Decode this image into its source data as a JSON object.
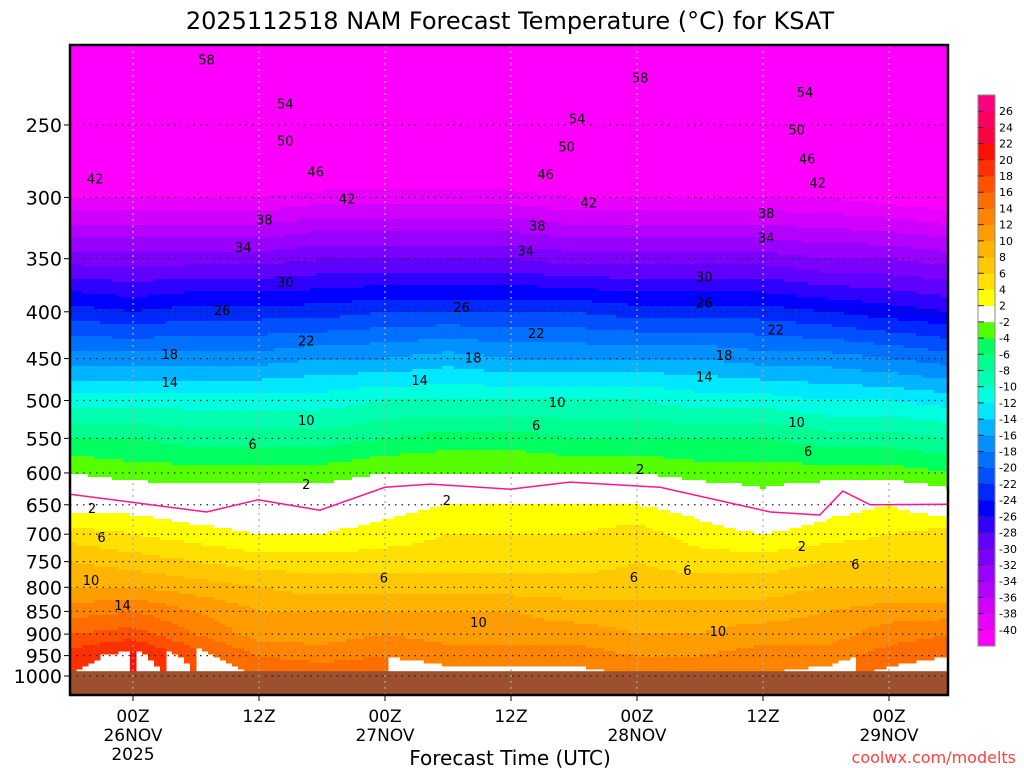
{
  "chart_data": {
    "type": "heatmap",
    "title": "2025112518 NAM Forecast Temperature (°C) for KSAT",
    "xlabel": "Forecast Time (UTC)",
    "ylabel": "",
    "credit": "coolwx.com/modelts",
    "x_units": "hours from 00Z 26NOV 2025",
    "xlim": [
      -6,
      77.6
    ],
    "ylim_pressure_hPa": [
      1049,
      205
    ],
    "y_scale": "log",
    "y_ticks": [
      "250",
      "300",
      "350",
      "400",
      "450",
      "500",
      "550",
      "600",
      "650",
      "700",
      "750",
      "800",
      "850",
      "900",
      "950",
      "1000"
    ],
    "y_tick_values": [
      250,
      300,
      350,
      400,
      450,
      500,
      550,
      600,
      650,
      700,
      750,
      800,
      850,
      900,
      950,
      1000
    ],
    "x_ticks": [
      {
        "hour": 0,
        "line1": "00Z",
        "line2": "26NOV",
        "line3": "2025"
      },
      {
        "hour": 12,
        "line1": "12Z",
        "line2": "",
        "line3": ""
      },
      {
        "hour": 24,
        "line1": "00Z",
        "line2": "27NOV",
        "line3": ""
      },
      {
        "hour": 36,
        "line1": "12Z",
        "line2": "",
        "line3": ""
      },
      {
        "hour": 48,
        "line1": "00Z",
        "line2": "28NOV",
        "line3": ""
      },
      {
        "hour": 60,
        "line1": "12Z",
        "line2": "",
        "line3": ""
      },
      {
        "hour": 72,
        "line1": "00Z",
        "line2": "29NOV",
        "line3": ""
      }
    ],
    "grid": true,
    "ground_pressure_hPa": 988,
    "ground_color": "#9c5030",
    "hours": [
      -6,
      0,
      6,
      12,
      18,
      24,
      30,
      36,
      42,
      48,
      54,
      60,
      66,
      72,
      78
    ],
    "pressure_levels": [
      1000,
      950,
      900,
      850,
      800,
      750,
      700,
      650,
      600,
      550,
      500,
      450,
      400,
      350,
      300,
      250,
      200
    ],
    "temperature_C": [
      [
        20,
        22,
        18,
        16,
        16,
        16,
        15,
        15,
        15,
        14,
        14,
        14,
        15,
        17,
        18
      ],
      [
        19,
        21,
        17,
        14,
        13,
        14,
        13,
        13,
        13,
        12,
        12,
        13,
        13,
        15,
        16
      ],
      [
        16,
        17,
        14,
        11,
        11,
        12,
        11,
        11,
        11,
        10,
        10,
        11,
        11,
        13,
        14
      ],
      [
        13,
        14,
        12,
        10,
        10,
        10,
        10,
        10,
        9,
        9,
        9,
        9,
        10,
        11,
        11
      ],
      [
        10,
        10,
        9,
        8,
        7,
        7,
        7,
        7,
        7,
        7,
        7,
        7,
        8,
        8,
        8
      ],
      [
        8,
        7,
        6,
        5,
        5,
        5,
        5,
        5,
        5,
        6,
        5,
        5,
        6,
        6,
        6
      ],
      [
        5,
        4,
        3,
        2,
        2,
        3,
        4,
        4,
        4,
        5,
        3,
        2,
        3,
        4,
        5
      ],
      [
        1,
        1,
        0,
        0,
        0,
        1,
        2,
        2,
        2,
        2,
        1,
        -1,
        1,
        2,
        0
      ],
      [
        -2,
        -3,
        -3,
        -3,
        -3,
        -2,
        -2,
        -2,
        -2,
        -2,
        -3,
        -3,
        -3,
        -3,
        -4
      ],
      [
        -6,
        -6,
        -7,
        -7,
        -7,
        -6,
        -5,
        -5,
        -6,
        -6,
        -6,
        -6,
        -7,
        -7,
        -8
      ],
      [
        -11,
        -11,
        -11,
        -11,
        -11,
        -10,
        -10,
        -10,
        -10,
        -10,
        -11,
        -11,
        -12,
        -12,
        -13
      ],
      [
        -17,
        -17,
        -17,
        -17,
        -16,
        -16,
        -15,
        -16,
        -16,
        -16,
        -16,
        -17,
        -17,
        -18,
        -19
      ],
      [
        -23,
        -24,
        -23,
        -23,
        -23,
        -22,
        -22,
        -22,
        -22,
        -23,
        -23,
        -23,
        -24,
        -25,
        -26
      ],
      [
        -31,
        -31,
        -31,
        -31,
        -30,
        -30,
        -30,
        -30,
        -31,
        -31,
        -31,
        -31,
        -32,
        -32,
        -33
      ],
      [
        -40,
        -40,
        -40,
        -40,
        -39,
        -39,
        -39,
        -39,
        -40,
        -40,
        -40,
        -40,
        -40,
        -41,
        -42
      ],
      [
        -50,
        -50,
        -50,
        -50,
        -49,
        -49,
        -49,
        -49,
        -50,
        -50,
        -50,
        -50,
        -50,
        -51,
        -51
      ],
      [
        -58,
        -58,
        -58,
        -58,
        -58,
        -58,
        -57,
        -58,
        -58,
        -58,
        -58,
        -58,
        -58,
        -58,
        -58
      ]
    ],
    "color_boundaries": [
      -40,
      -38,
      -36,
      -34,
      -32,
      -30,
      -28,
      -26,
      -24,
      -22,
      -20,
      -18,
      -16,
      -14,
      -12,
      -10,
      -8,
      -6,
      -4,
      -2,
      2,
      4,
      6,
      8,
      10,
      12,
      14,
      16,
      18,
      20,
      22,
      24,
      26
    ],
    "colors": [
      "#ff00ff",
      "#e800ff",
      "#d000ff",
      "#b400ff",
      "#9800ff",
      "#7c00ff",
      "#6000ff",
      "#3000ff",
      "#0000ff",
      "#0028ff",
      "#0050ff",
      "#0070ff",
      "#0090ff",
      "#00b4ff",
      "#00e8ff",
      "#00ffe0",
      "#00ffb0",
      "#00ff90",
      "#00ff60",
      "#55ff00",
      "#ffffff",
      "#ffff00",
      "#ffe000",
      "#ffc800",
      "#ffb400",
      "#ff9c00",
      "#ff8400",
      "#ff6c00",
      "#ff5000",
      "#ff3000",
      "#ff1000",
      "#ff0040",
      "#ff0060",
      "#ff0080"
    ],
    "colorbar_labels": [
      "26",
      "24",
      "22",
      "20",
      "18",
      "16",
      "14",
      "12",
      "10",
      "8",
      "6",
      "4",
      "2",
      "-2",
      "-4",
      "-6",
      "-8",
      "-10",
      "-12",
      "-14",
      "-16",
      "-18",
      "-20",
      "-22",
      "-24",
      "-26",
      "-28",
      "-30",
      "-32",
      "-34",
      "-36",
      "-38",
      "-40"
    ],
    "freezing_line_color": "#ff1493",
    "freezing_line": [
      [
        -6,
        633
      ],
      [
        7,
        662
      ],
      [
        11.9,
        642
      ],
      [
        17.8,
        659
      ],
      [
        24,
        622
      ],
      [
        28.3,
        617
      ],
      [
        35.9,
        625
      ],
      [
        41.6,
        614
      ],
      [
        50.2,
        622
      ],
      [
        60.7,
        662
      ],
      [
        65.4,
        667
      ],
      [
        67.6,
        628
      ],
      [
        70.2,
        650
      ],
      [
        77.6,
        649
      ]
    ],
    "contour_labels": [
      {
        "text": "58",
        "hour": 7,
        "p": 212
      },
      {
        "text": "58",
        "hour": 48.3,
        "p": 222
      },
      {
        "text": "54",
        "hour": 14.5,
        "p": 237
      },
      {
        "text": "54",
        "hour": 42.3,
        "p": 246
      },
      {
        "text": "54",
        "hour": 64,
        "p": 230
      },
      {
        "text": "50",
        "hour": 14.5,
        "p": 260
      },
      {
        "text": "50",
        "hour": 41.3,
        "p": 264
      },
      {
        "text": "50",
        "hour": 63.2,
        "p": 253
      },
      {
        "text": "46",
        "hour": 17.4,
        "p": 281
      },
      {
        "text": "46",
        "hour": 39.3,
        "p": 283
      },
      {
        "text": "46",
        "hour": 64.2,
        "p": 272
      },
      {
        "text": "42",
        "hour": -3.6,
        "p": 286
      },
      {
        "text": "42",
        "hour": 20.4,
        "p": 301
      },
      {
        "text": "42",
        "hour": 43.4,
        "p": 304
      },
      {
        "text": "42",
        "hour": 65.2,
        "p": 289
      },
      {
        "text": "38",
        "hour": 12.5,
        "p": 317
      },
      {
        "text": "38",
        "hour": 38.5,
        "p": 322
      },
      {
        "text": "38",
        "hour": 60.3,
        "p": 312
      },
      {
        "text": "34",
        "hour": 10.5,
        "p": 340
      },
      {
        "text": "34",
        "hour": 37.4,
        "p": 343
      },
      {
        "text": "34",
        "hour": 60.3,
        "p": 332
      },
      {
        "text": "30",
        "hour": 14.5,
        "p": 371
      },
      {
        "text": "30",
        "hour": 54.4,
        "p": 366
      },
      {
        "text": "26",
        "hour": 8.5,
        "p": 398
      },
      {
        "text": "26",
        "hour": 31.3,
        "p": 395
      },
      {
        "text": "26",
        "hour": 54.4,
        "p": 391
      },
      {
        "text": "22",
        "hour": 16.5,
        "p": 430
      },
      {
        "text": "22",
        "hour": 38.4,
        "p": 422
      },
      {
        "text": "22",
        "hour": 61.2,
        "p": 418
      },
      {
        "text": "18",
        "hour": 3.5,
        "p": 445
      },
      {
        "text": "18",
        "hour": 32.4,
        "p": 449
      },
      {
        "text": "18",
        "hour": 56.3,
        "p": 446
      },
      {
        "text": "14",
        "hour": 3.5,
        "p": 477
      },
      {
        "text": "14",
        "hour": 27.3,
        "p": 475
      },
      {
        "text": "14",
        "hour": 54.4,
        "p": 471
      },
      {
        "text": "10",
        "hour": 16.5,
        "p": 525
      },
      {
        "text": "10",
        "hour": 40.4,
        "p": 502
      },
      {
        "text": "10",
        "hour": 63.2,
        "p": 528
      },
      {
        "text": "6",
        "hour": 11.4,
        "p": 558
      },
      {
        "text": "6",
        "hour": 38.4,
        "p": 532
      },
      {
        "text": "6",
        "hour": 64.3,
        "p": 568
      },
      {
        "text": "2",
        "hour": 16.5,
        "p": 617
      },
      {
        "text": "2",
        "hour": 48.3,
        "p": 594
      },
      {
        "text": "2",
        "hour": 29.9,
        "p": 642
      },
      {
        "text": "2",
        "hour": -3.9,
        "p": 655
      },
      {
        "text": "2",
        "hour": 63.7,
        "p": 721
      },
      {
        "text": "6",
        "hour": -3,
        "p": 705
      },
      {
        "text": "6",
        "hour": 23.9,
        "p": 781
      },
      {
        "text": "6",
        "hour": 47.7,
        "p": 780
      },
      {
        "text": "6",
        "hour": 52.8,
        "p": 766
      },
      {
        "text": "6",
        "hour": 68.8,
        "p": 754
      },
      {
        "text": "10",
        "hour": -4,
        "p": 785
      },
      {
        "text": "10",
        "hour": 32.9,
        "p": 873
      },
      {
        "text": "10",
        "hour": 55.7,
        "p": 893
      },
      {
        "text": "14",
        "hour": -1,
        "p": 836
      }
    ]
  }
}
